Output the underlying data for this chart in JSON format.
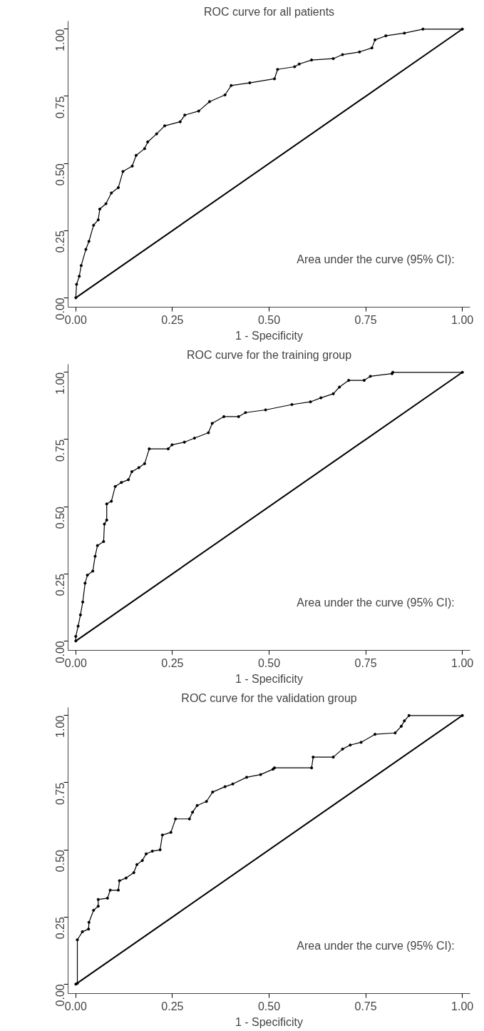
{
  "chart_data": [
    {
      "type": "line",
      "title": "ROC curve for all patients",
      "xlabel": "1 - Specificity",
      "annotations": [
        "Area under the curve (95% CI):"
      ],
      "xlim": [
        -0.02,
        1.02
      ],
      "ylim": [
        -0.035,
        1.03
      ],
      "xticks": [
        {
          "value": 0,
          "label": "0.00"
        },
        {
          "value": 0.25,
          "label": "0.25"
        },
        {
          "value": 0.5,
          "label": "0.50"
        },
        {
          "value": 0.75,
          "label": "0.75"
        },
        {
          "value": 1,
          "label": "1.00"
        }
      ],
      "yticks": [
        {
          "value": 0,
          "label": "0.00"
        },
        {
          "value": 0.25,
          "label": "0.25"
        },
        {
          "value": 0.5,
          "label": "0.50"
        },
        {
          "value": 0.75,
          "label": "0.75"
        },
        {
          "value": 1,
          "label": "1.00"
        }
      ],
      "series": [
        {
          "color": "#000000",
          "marker": "circle",
          "x": [
            0,
            0.002,
            0.009,
            0.014,
            0.026,
            0.034,
            0.046,
            0.058,
            0.062,
            0.078,
            0.092,
            0.11,
            0.122,
            0.146,
            0.156,
            0.178,
            0.186,
            0.209,
            0.23,
            0.27,
            0.282,
            0.318,
            0.346,
            0.386,
            0.402,
            0.45,
            0.514,
            0.522,
            0.566,
            0.578,
            0.61,
            0.666,
            0.69,
            0.734,
            0.766,
            0.774,
            0.802,
            0.85,
            0.898,
            1
          ],
          "values": [
            0,
            0.05,
            0.08,
            0.12,
            0.18,
            0.21,
            0.27,
            0.29,
            0.33,
            0.35,
            0.39,
            0.41,
            0.47,
            0.49,
            0.53,
            0.555,
            0.58,
            0.61,
            0.64,
            0.655,
            0.68,
            0.695,
            0.73,
            0.755,
            0.79,
            0.8,
            0.815,
            0.85,
            0.86,
            0.87,
            0.885,
            0.89,
            0.905,
            0.915,
            0.93,
            0.96,
            0.975,
            0.985,
            1,
            1
          ]
        },
        {
          "color": "#000000",
          "marker": "none",
          "x": [
            0,
            1
          ],
          "values": [
            0,
            1
          ]
        }
      ]
    },
    {
      "type": "line",
      "title": "ROC curve for the training group",
      "xlabel": "1 - Specificity",
      "annotations": [
        "Area under the curve (95% CI):"
      ],
      "xlim": [
        -0.02,
        1.02
      ],
      "ylim": [
        -0.035,
        1.03
      ],
      "xticks": [
        {
          "value": 0,
          "label": "0.00"
        },
        {
          "value": 0.25,
          "label": "0.25"
        },
        {
          "value": 0.5,
          "label": "0.50"
        },
        {
          "value": 0.75,
          "label": "0.75"
        },
        {
          "value": 1,
          "label": "1.00"
        }
      ],
      "yticks": [
        {
          "value": 0,
          "label": "0.00"
        },
        {
          "value": 0.25,
          "label": "0.25"
        },
        {
          "value": 0.5,
          "label": "0.50"
        },
        {
          "value": 0.75,
          "label": "0.75"
        },
        {
          "value": 1,
          "label": "1.00"
        }
      ],
      "series": [
        {
          "color": "#000000",
          "marker": "circle",
          "x": [
            0,
            0,
            0.006,
            0.012,
            0.018,
            0.024,
            0.03,
            0.044,
            0.05,
            0.056,
            0.072,
            0.074,
            0.08,
            0.08,
            0.092,
            0.102,
            0.118,
            0.136,
            0.145,
            0.163,
            0.178,
            0.19,
            0.239,
            0.249,
            0.281,
            0.307,
            0.343,
            0.353,
            0.383,
            0.421,
            0.439,
            0.491,
            0.559,
            0.607,
            0.634,
            0.666,
            0.682,
            0.706,
            0.746,
            0.762,
            0.818,
            0.82,
            1
          ],
          "values": [
            0,
            0.017,
            0.055,
            0.097,
            0.145,
            0.215,
            0.245,
            0.26,
            0.315,
            0.355,
            0.37,
            0.435,
            0.45,
            0.51,
            0.52,
            0.575,
            0.59,
            0.6,
            0.63,
            0.645,
            0.66,
            0.715,
            0.715,
            0.73,
            0.74,
            0.755,
            0.775,
            0.81,
            0.835,
            0.835,
            0.85,
            0.86,
            0.88,
            0.89,
            0.905,
            0.92,
            0.945,
            0.97,
            0.97,
            0.985,
            0.995,
            1,
            1
          ]
        },
        {
          "color": "#000000",
          "marker": "none",
          "x": [
            0,
            1
          ],
          "values": [
            0,
            1
          ]
        }
      ]
    },
    {
      "type": "line",
      "title": "ROC curve for the validation group",
      "xlabel": "1 - Specificity",
      "annotations": [
        "Area under the curve (95% CI):"
      ],
      "xlim": [
        -0.02,
        1.02
      ],
      "ylim": [
        -0.035,
        1.03
      ],
      "xticks": [
        {
          "value": 0,
          "label": "0.00"
        },
        {
          "value": 0.25,
          "label": "0.25"
        },
        {
          "value": 0.5,
          "label": "0.50"
        },
        {
          "value": 0.75,
          "label": "0.75"
        },
        {
          "value": 1,
          "label": "1.00"
        }
      ],
      "yticks": [
        {
          "value": 0,
          "label": "0.00"
        },
        {
          "value": 0.25,
          "label": "0.25"
        },
        {
          "value": 0.5,
          "label": "0.50"
        },
        {
          "value": 0.75,
          "label": "0.75"
        },
        {
          "value": 1,
          "label": "1.00"
        }
      ],
      "series": [
        {
          "color": "#000000",
          "marker": "circle",
          "x": [
            0,
            0.004,
            0.004,
            0.017,
            0.033,
            0.034,
            0.046,
            0.058,
            0.058,
            0.082,
            0.089,
            0.11,
            0.113,
            0.13,
            0.15,
            0.158,
            0.172,
            0.182,
            0.198,
            0.218,
            0.224,
            0.246,
            0.258,
            0.294,
            0.302,
            0.314,
            0.338,
            0.354,
            0.386,
            0.406,
            0.442,
            0.478,
            0.51,
            0.514,
            0.61,
            0.614,
            0.666,
            0.69,
            0.71,
            0.738,
            0.774,
            0.826,
            0.842,
            0.85,
            0.862,
            1
          ],
          "values": [
            0,
            0.003,
            0.165,
            0.195,
            0.205,
            0.23,
            0.275,
            0.29,
            0.315,
            0.32,
            0.35,
            0.35,
            0.385,
            0.395,
            0.415,
            0.445,
            0.46,
            0.485,
            0.495,
            0.5,
            0.555,
            0.565,
            0.615,
            0.615,
            0.64,
            0.665,
            0.68,
            0.715,
            0.735,
            0.745,
            0.77,
            0.78,
            0.8,
            0.805,
            0.805,
            0.845,
            0.845,
            0.875,
            0.89,
            0.9,
            0.93,
            0.935,
            0.96,
            0.98,
            1,
            1
          ]
        },
        {
          "color": "#000000",
          "marker": "none",
          "x": [
            0,
            1
          ],
          "values": [
            0,
            1
          ]
        }
      ]
    }
  ]
}
